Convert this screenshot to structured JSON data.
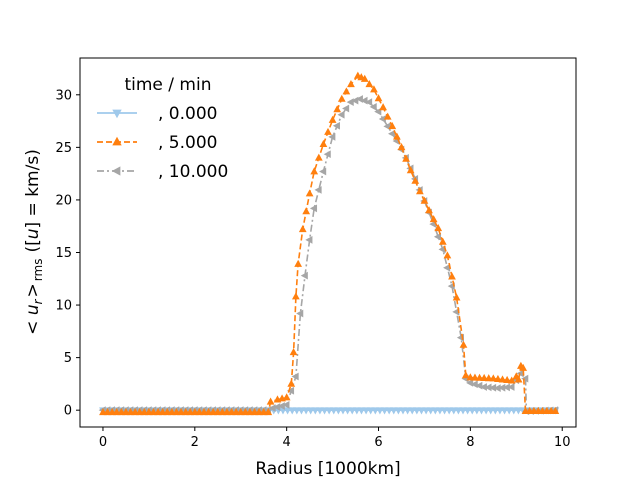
{
  "chart_data": {
    "type": "line",
    "title": "",
    "xlabel": "Radius [1000km]",
    "ylabel": "< u_r >_rms ([u] = km/s)",
    "ylabel_parts": {
      "lt": "<",
      "u": "u",
      "r": "r",
      "gt": ">",
      "rms": "rms",
      "rest1": "([",
      "rest2": "] = km/s)"
    },
    "xlim": [
      -0.5,
      10.3
    ],
    "ylim": [
      -1.6,
      33.5
    ],
    "xticks": [
      0,
      2,
      4,
      6,
      8,
      10
    ],
    "yticks": [
      0,
      5,
      10,
      15,
      20,
      25,
      30
    ],
    "legend": {
      "title": "time / min",
      "placement": "top-left"
    },
    "series": [
      {
        "name": ", 0.000",
        "color": "#9fc9eb",
        "marker": "triangle-down",
        "linestyle": "solid",
        "points": [
          [
            0.0,
            0.0
          ],
          [
            9.85,
            0.0
          ]
        ]
      },
      {
        "name": ", 5.000",
        "color": "#ff7f0e",
        "marker": "triangle-up",
        "linestyle": "dashed",
        "points": [
          [
            0.0,
            -0.2
          ],
          [
            3.6,
            -0.2
          ],
          [
            3.65,
            0.8
          ],
          [
            3.8,
            1.0
          ],
          [
            4.0,
            1.2
          ],
          [
            4.1,
            2.5
          ],
          [
            4.15,
            5.5
          ],
          [
            4.2,
            10.8
          ],
          [
            4.25,
            13.9
          ],
          [
            4.35,
            17.2
          ],
          [
            4.5,
            20.6
          ],
          [
            4.6,
            22.7
          ],
          [
            4.8,
            25.3
          ],
          [
            5.0,
            27.6
          ],
          [
            5.2,
            29.6
          ],
          [
            5.4,
            31.0
          ],
          [
            5.55,
            31.8
          ],
          [
            5.7,
            31.5
          ],
          [
            5.9,
            30.5
          ],
          [
            6.1,
            28.8
          ],
          [
            6.3,
            27.0
          ],
          [
            6.5,
            25.0
          ],
          [
            6.7,
            22.8
          ],
          [
            6.9,
            20.8
          ],
          [
            7.1,
            19.0
          ],
          [
            7.3,
            17.3
          ],
          [
            7.5,
            14.7
          ],
          [
            7.7,
            10.7
          ],
          [
            7.85,
            6.2
          ],
          [
            7.9,
            3.3
          ],
          [
            8.0,
            3.1
          ],
          [
            8.5,
            3.0
          ],
          [
            8.9,
            2.8
          ],
          [
            9.0,
            3.2
          ],
          [
            9.05,
            2.9
          ],
          [
            9.1,
            4.2
          ],
          [
            9.15,
            4.0
          ],
          [
            9.2,
            -0.1
          ],
          [
            9.85,
            -0.1
          ]
        ]
      },
      {
        "name": ", 10.000",
        "color": "#a6a6a6",
        "marker": "triangle-left",
        "linestyle": "dashdot",
        "points": [
          [
            0.0,
            0.0
          ],
          [
            3.6,
            0.0
          ],
          [
            3.7,
            0.2
          ],
          [
            4.0,
            0.5
          ],
          [
            4.2,
            3.2
          ],
          [
            4.3,
            9.2
          ],
          [
            4.4,
            12.8
          ],
          [
            4.5,
            16.2
          ],
          [
            4.6,
            19.2
          ],
          [
            4.8,
            22.7
          ],
          [
            5.0,
            26.0
          ],
          [
            5.2,
            28.1
          ],
          [
            5.4,
            29.3
          ],
          [
            5.6,
            29.6
          ],
          [
            5.8,
            29.3
          ],
          [
            6.0,
            28.4
          ],
          [
            6.2,
            27.0
          ],
          [
            6.4,
            25.6
          ],
          [
            6.6,
            24.0
          ],
          [
            6.8,
            22.0
          ],
          [
            7.0,
            19.9
          ],
          [
            7.2,
            17.7
          ],
          [
            7.4,
            15.3
          ],
          [
            7.6,
            11.8
          ],
          [
            7.8,
            6.9
          ],
          [
            7.9,
            3.0
          ],
          [
            8.0,
            2.6
          ],
          [
            8.3,
            2.2
          ],
          [
            8.6,
            2.1
          ],
          [
            8.9,
            2.2
          ],
          [
            9.1,
            3.5
          ],
          [
            9.2,
            3.0
          ],
          [
            9.22,
            -0.1
          ],
          [
            9.85,
            0.0
          ]
        ]
      }
    ],
    "grid": false
  }
}
